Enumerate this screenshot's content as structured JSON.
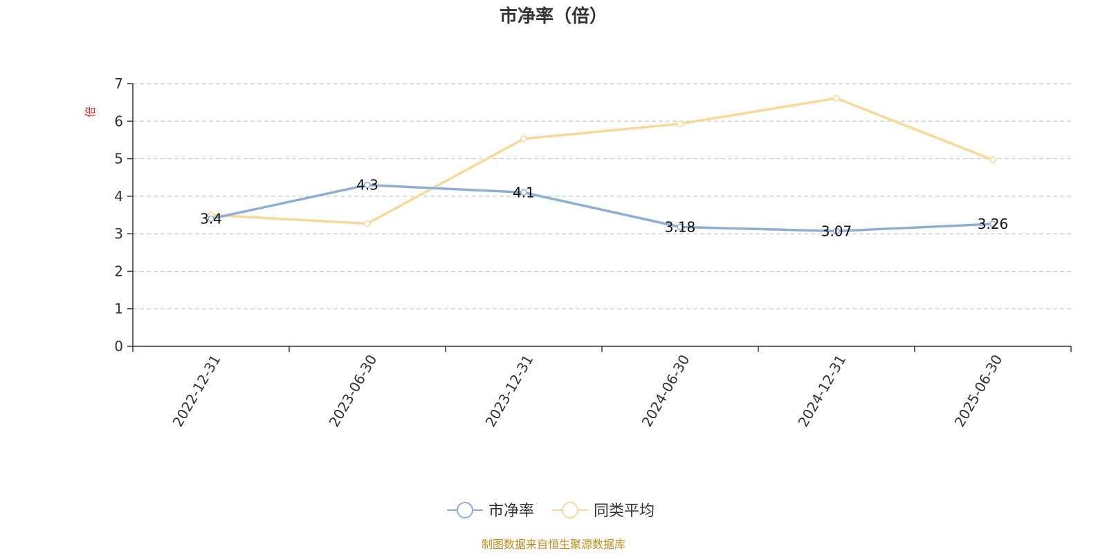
{
  "chart_data": {
    "type": "line",
    "title": "市净率（倍）",
    "ylabel": "倍",
    "ylim": [
      0,
      7
    ],
    "yticks": [
      0,
      1,
      2,
      3,
      4,
      5,
      6,
      7
    ],
    "grid": true,
    "legend_position": "bottom",
    "categories": [
      "2022-12-31",
      "2023-06-30",
      "2023-12-31",
      "2024-06-30",
      "2024-12-31",
      "2025-06-30"
    ],
    "series": [
      {
        "name": "市净率",
        "color": "#8eaed8",
        "values": [
          3.4,
          4.3,
          4.1,
          3.18,
          3.07,
          3.26
        ],
        "labels": [
          "3.4",
          "4.3",
          "4.1",
          "3.18",
          "3.07",
          "3.26"
        ]
      },
      {
        "name": "同类平均",
        "color": "#f9d99a",
        "values": [
          3.5,
          3.27,
          5.53,
          5.93,
          6.61,
          4.97
        ]
      }
    ],
    "source": "制图数据来自恒生聚源数据库"
  }
}
